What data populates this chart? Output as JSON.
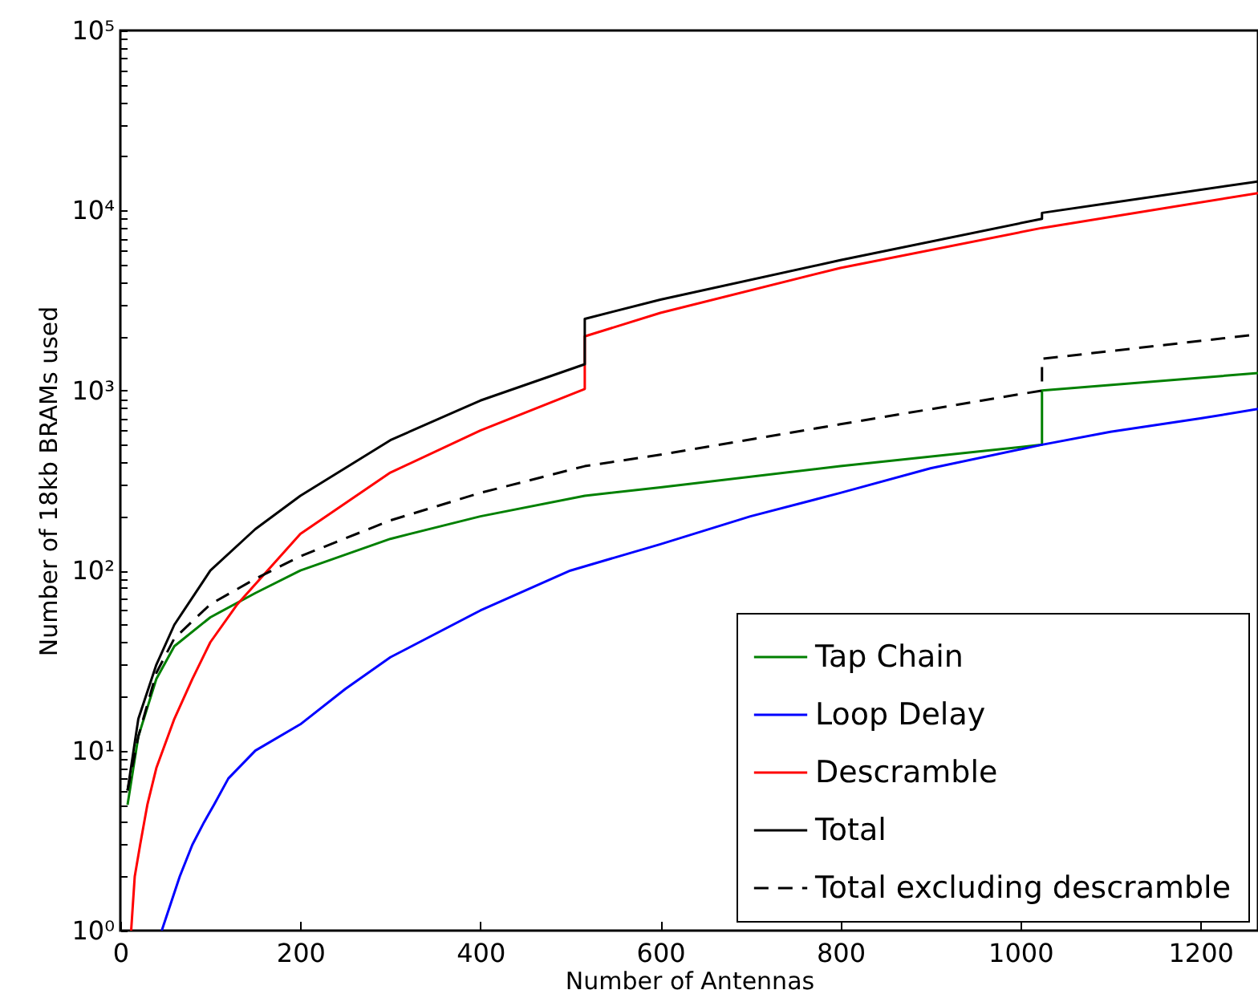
{
  "chart_data": {
    "type": "line",
    "xlabel": "Number of Antennas",
    "ylabel": "Number of 18kb BRAMs used",
    "log": true,
    "legend": "bottom right",
    "xlim": [
      0,
      1264
    ],
    "xticks": [
      0,
      200,
      400,
      600,
      800,
      1000,
      1200
    ],
    "ylim": [
      1,
      100000
    ],
    "yticks": [
      {
        "value": 1,
        "label": "10⁰"
      },
      {
        "value": 2,
        "label": null
      },
      {
        "value": 3,
        "label": null
      },
      {
        "value": 4,
        "label": null
      },
      {
        "value": 5,
        "label": null
      },
      {
        "value": 6,
        "label": null
      },
      {
        "value": 7,
        "label": null
      },
      {
        "value": 8,
        "label": null
      },
      {
        "value": 9,
        "label": null
      },
      {
        "value": 10,
        "label": "10¹"
      },
      {
        "value": 20,
        "label": null
      },
      {
        "value": 30,
        "label": null
      },
      {
        "value": 40,
        "label": null
      },
      {
        "value": 50,
        "label": null
      },
      {
        "value": 60,
        "label": null
      },
      {
        "value": 70,
        "label": null
      },
      {
        "value": 80,
        "label": null
      },
      {
        "value": 90,
        "label": null
      },
      {
        "value": 100,
        "label": "10²"
      },
      {
        "value": 200,
        "label": null
      },
      {
        "value": 300,
        "label": null
      },
      {
        "value": 400,
        "label": null
      },
      {
        "value": 500,
        "label": null
      },
      {
        "value": 600,
        "label": null
      },
      {
        "value": 700,
        "label": null
      },
      {
        "value": 800,
        "label": null
      },
      {
        "value": 900,
        "label": null
      },
      {
        "value": 1000,
        "label": "10³"
      },
      {
        "value": 2000,
        "label": null
      },
      {
        "value": 3000,
        "label": null
      },
      {
        "value": 4000,
        "label": null
      },
      {
        "value": 5000,
        "label": null
      },
      {
        "value": 6000,
        "label": null
      },
      {
        "value": 7000,
        "label": null
      },
      {
        "value": 8000,
        "label": null
      },
      {
        "value": 9000,
        "label": null
      },
      {
        "value": 10000,
        "label": "10⁴"
      },
      {
        "value": 20000,
        "label": null
      },
      {
        "value": 30000,
        "label": null
      },
      {
        "value": 40000,
        "label": null
      },
      {
        "value": 50000,
        "label": null
      },
      {
        "value": 60000,
        "label": null
      },
      {
        "value": 70000,
        "label": null
      },
      {
        "value": 80000,
        "label": null
      },
      {
        "value": 90000,
        "label": null
      },
      {
        "value": 100000,
        "label": "10⁵"
      }
    ],
    "series": [
      {
        "name": "Tap Chain",
        "color": "#008000",
        "line_style": "solid",
        "x": [
          8,
          20,
          40,
          60,
          100,
          150,
          200,
          300,
          400,
          516,
          600,
          800,
          1024,
          1024,
          1264
        ],
        "values": [
          5,
          12,
          25,
          38,
          55,
          75,
          100,
          150,
          200,
          260,
          290,
          380,
          500,
          1000,
          1250
        ]
      },
      {
        "name": "Loop Delay",
        "color": "#0000ff",
        "line_style": "solid",
        "x": [
          46,
          66,
          80,
          93,
          104,
          120,
          150,
          200,
          250,
          300,
          400,
          500,
          600,
          700,
          800,
          900,
          1024,
          1100,
          1200,
          1264
        ],
        "values": [
          1,
          2,
          3,
          4,
          5,
          7,
          10,
          14,
          22,
          33,
          60,
          100,
          140,
          200,
          270,
          370,
          500,
          590,
          700,
          790
        ]
      },
      {
        "name": "Descramble",
        "color": "#ff0000",
        "line_style": "solid",
        "x": [
          12,
          16,
          22,
          30,
          40,
          60,
          80,
          100,
          130,
          200,
          300,
          400,
          516,
          516,
          600,
          800,
          1024,
          1264
        ],
        "values": [
          1,
          2,
          3,
          5,
          8,
          15,
          25,
          40,
          65,
          160,
          350,
          600,
          1020,
          2000,
          2700,
          4800,
          8000,
          12500
        ]
      },
      {
        "name": "Total",
        "color": "#000000",
        "line_style": "solid",
        "x": [
          8,
          20,
          40,
          60,
          100,
          150,
          200,
          300,
          400,
          516,
          516,
          600,
          800,
          1024,
          1024,
          1264
        ],
        "values": [
          6,
          15,
          30,
          50,
          100,
          170,
          260,
          530,
          880,
          1400,
          2500,
          3200,
          5300,
          9000,
          9700,
          14500
        ]
      },
      {
        "name": "Total excluding descramble",
        "color": "#000000",
        "line_style": "dashed",
        "x": [
          8,
          20,
          40,
          60,
          100,
          150,
          200,
          300,
          400,
          516,
          600,
          800,
          1024,
          1024,
          1264
        ],
        "values": [
          6,
          12,
          27,
          42,
          65,
          90,
          120,
          190,
          270,
          380,
          440,
          650,
          1000,
          1500,
          2050
        ]
      }
    ]
  }
}
